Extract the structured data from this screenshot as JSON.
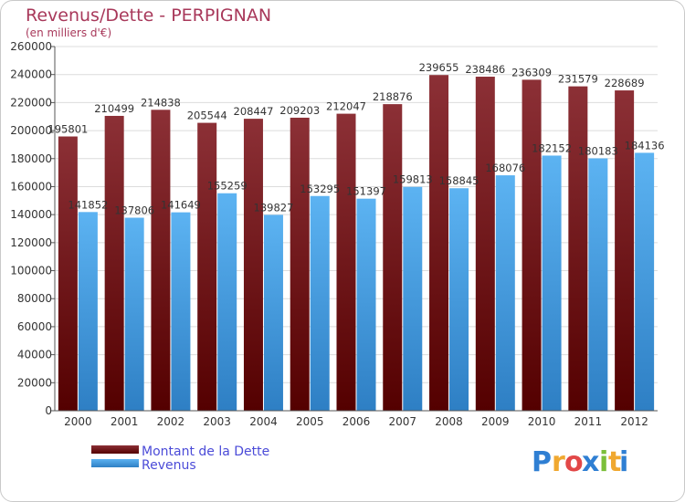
{
  "chart_data": {
    "type": "bar",
    "title": "Revenus/Dette - PERPIGNAN",
    "subtitle": "(en milliers d'€)",
    "categories": [
      "2000",
      "2001",
      "2002",
      "2003",
      "2004",
      "2005",
      "2006",
      "2007",
      "2008",
      "2009",
      "2010",
      "2011",
      "2012"
    ],
    "series": [
      {
        "name": "Montant de la Dette",
        "color": "#7a2a2f",
        "values": [
          195801,
          210499,
          214838,
          205544,
          208447,
          209203,
          212047,
          218876,
          239655,
          238486,
          236309,
          231579,
          228689
        ]
      },
      {
        "name": "Revenus",
        "color": "#4ea6ea",
        "values": [
          141852,
          137806,
          141649,
          155259,
          139827,
          153295,
          151397,
          159813,
          158845,
          168076,
          182152,
          180183,
          184136
        ]
      }
    ],
    "ylim": [
      0,
      260000
    ],
    "yticks": [
      0,
      20000,
      40000,
      60000,
      80000,
      100000,
      120000,
      140000,
      160000,
      180000,
      200000,
      220000,
      240000,
      260000
    ],
    "grid": true,
    "legend_position": "bottom-left"
  },
  "branding": {
    "logo_letters": [
      "P",
      "r",
      "o",
      "x",
      "i",
      "t",
      "i"
    ],
    "logo_colors": [
      "#2f7fd3",
      "#f0a830",
      "#e24848",
      "#2f7fd3",
      "#7bbf3a",
      "#f0a830",
      "#2f7fd3"
    ]
  }
}
